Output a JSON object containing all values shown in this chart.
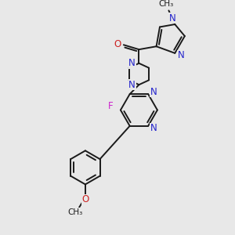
{
  "background_color": "#e8e8e8",
  "bond_color": "#1a1a1a",
  "nitrogen_color": "#2222cc",
  "oxygen_color": "#cc2222",
  "fluorine_color": "#cc22cc",
  "carbon_color": "#1a1a1a",
  "figsize": [
    3.0,
    3.0
  ],
  "dpi": 100,
  "xlim": [
    0,
    300
  ],
  "ylim": [
    0,
    300
  ]
}
